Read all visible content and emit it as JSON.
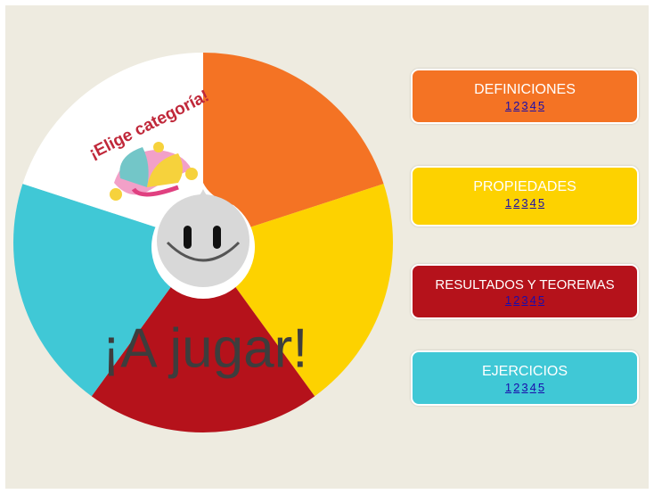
{
  "wheel": {
    "prompt": "¡Elige categoría!",
    "center_text": "¡A jugar!"
  },
  "categories": [
    {
      "title": "DEFINICIONES",
      "links": [
        "1",
        "2",
        "3",
        "4",
        "5"
      ]
    },
    {
      "title": "PROPIEDADES",
      "links": [
        "1",
        "2",
        "3",
        "4",
        "5"
      ]
    },
    {
      "title": "RESULTADOS Y TEOREMAS",
      "links": [
        "1",
        "2",
        "3",
        "4",
        "5"
      ]
    },
    {
      "title": "EJERCICIOS",
      "links": [
        "1",
        "2",
        "3",
        "4",
        "5"
      ]
    }
  ]
}
